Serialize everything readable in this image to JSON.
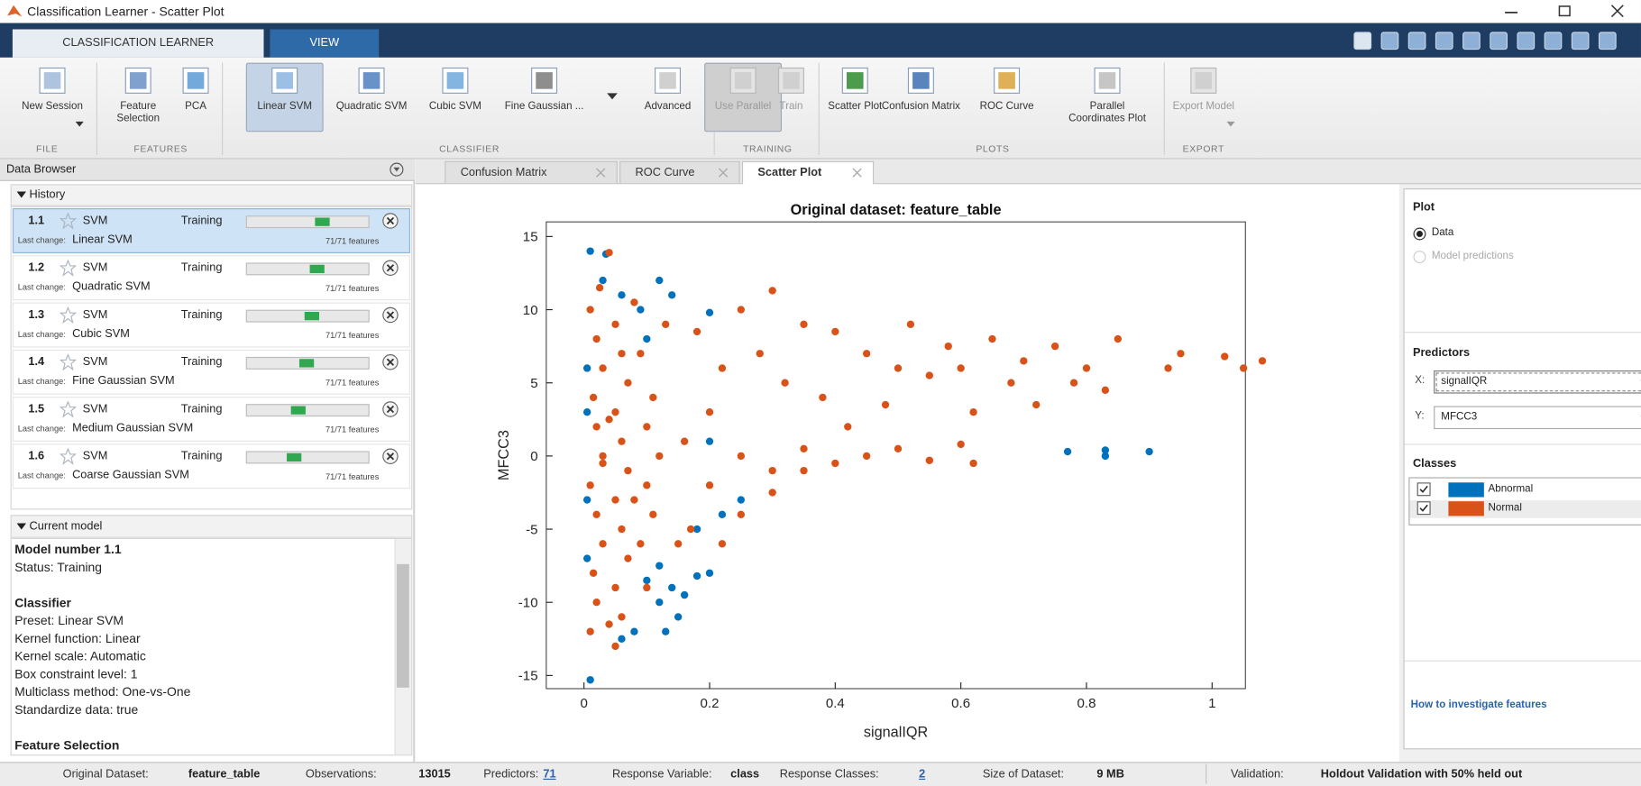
{
  "window": {
    "title": "Classification Learner - Scatter Plot"
  },
  "tabs": [
    "CLASSIFICATION LEARNER",
    "VIEW"
  ],
  "toolstrip": [
    {
      "label": "FILE",
      "buttons": [
        {
          "label": "New Session",
          "dropdown": true
        }
      ]
    },
    {
      "label": "FEATURES",
      "buttons": [
        {
          "label": "Feature Selection"
        },
        {
          "label": "PCA"
        }
      ]
    },
    {
      "label": "CLASSIFIER",
      "buttons": [
        {
          "label": "Linear SVM",
          "selected": true
        },
        {
          "label": "Quadratic SVM"
        },
        {
          "label": "Cubic SVM"
        },
        {
          "label": "Fine Gaussian ..."
        },
        {
          "label": "Advanced"
        }
      ]
    },
    {
      "label": "TRAINING",
      "buttons": [
        {
          "label": "Use Parallel",
          "disabled": true,
          "selected": true
        },
        {
          "label": "Train",
          "disabled": true
        }
      ]
    },
    {
      "label": "PLOTS",
      "buttons": [
        {
          "label": "Scatter Plot"
        },
        {
          "label": "Confusion Matrix"
        },
        {
          "label": "ROC Curve"
        },
        {
          "label": "Parallel Coordinates Plot"
        }
      ]
    },
    {
      "label": "EXPORT",
      "buttons": [
        {
          "label": "Export Model",
          "dropdown": true,
          "disabled": true
        }
      ]
    }
  ],
  "data_browser": {
    "title": "Data Browser",
    "history_label": "History",
    "items": [
      {
        "number": "1.1",
        "type": "SVM",
        "status": "Training",
        "last_change_label": "Last change:",
        "model": "Linear SVM",
        "features": "71/71 features",
        "selected": true
      },
      {
        "number": "1.2",
        "type": "SVM",
        "status": "Training",
        "last_change_label": "Last change:",
        "model": "Quadratic SVM",
        "features": "71/71 features"
      },
      {
        "number": "1.3",
        "type": "SVM",
        "status": "Training",
        "last_change_label": "Last change:",
        "model": "Cubic SVM",
        "features": "71/71 features"
      },
      {
        "number": "1.4",
        "type": "SVM",
        "status": "Training",
        "last_change_label": "Last change:",
        "model": "Fine Gaussian SVM",
        "features": "71/71 features"
      },
      {
        "number": "1.5",
        "type": "SVM",
        "status": "Training",
        "last_change_label": "Last change:",
        "model": "Medium Gaussian SVM",
        "features": "71/71 features"
      },
      {
        "number": "1.6",
        "type": "SVM",
        "status": "Training",
        "last_change_label": "Last change:",
        "model": "Coarse Gaussian SVM",
        "features": "71/71 features"
      }
    ],
    "current_model_label": "Current model",
    "current_model": [
      {
        "heading": "Model number 1.1",
        "lines": [
          "Status: Training"
        ]
      },
      {
        "heading": "Classifier",
        "lines": [
          "Preset: Linear SVM",
          "Kernel function: Linear",
          "Kernel scale: Automatic",
          "Box constraint level: 1",
          "Multiclass method: One-vs-One",
          "Standardize data: true"
        ]
      },
      {
        "heading": "Feature Selection",
        "lines": []
      }
    ]
  },
  "doc_tabs": [
    {
      "label": "Confusion Matrix"
    },
    {
      "label": "ROC Curve"
    },
    {
      "label": "Scatter Plot",
      "active": true
    }
  ],
  "chart_data": {
    "type": "scatter",
    "title": "Original dataset: feature_table",
    "xlabel": "signalIQR",
    "ylabel": "MFCC3",
    "xlim": [
      -0.06,
      1.053
    ],
    "ylim": [
      -15.9,
      16
    ],
    "xticks": [
      0,
      0.2,
      0.4,
      0.6,
      0.8,
      1
    ],
    "yticks": [
      -15,
      -10,
      -5,
      0,
      5,
      10,
      15
    ],
    "grid": false,
    "series": [
      {
        "name": "Abnormal",
        "color": "#0072bd",
        "x": [
          0.01,
          0.01,
          0.035,
          0.03,
          0.06,
          0.12,
          0.14,
          0.2,
          0.1,
          0.12,
          0.14,
          0.16,
          0.18,
          0.2,
          0.15,
          0.13,
          0.08,
          0.06,
          0.005,
          0.005,
          0.005,
          0.005,
          0.77,
          0.83,
          0.83,
          0.9,
          0.12,
          0.18,
          0.22,
          0.2,
          0.25,
          0.09,
          0.1
        ],
        "values": [
          14,
          -15.3,
          13.8,
          12,
          11,
          12,
          11,
          9.8,
          -8.5,
          -10,
          -9,
          -9.5,
          -8.2,
          -8,
          -11,
          -12,
          -12,
          -12.5,
          -3,
          3,
          6,
          -7,
          0.3,
          0.4,
          0,
          0.3,
          -7.5,
          -5,
          -4,
          1,
          -3,
          10,
          8
        ]
      },
      {
        "name": "Normal",
        "color": "#d95319",
        "x": [
          0.01,
          0.02,
          0.015,
          0.03,
          0.02,
          0.01,
          0.03,
          0.02,
          0.015,
          0.03,
          0.02,
          0.01,
          0.025,
          0.05,
          0.06,
          0.05,
          0.07,
          0.06,
          0.05,
          0.07,
          0.06,
          0.05,
          0.07,
          0.06,
          0.05,
          0.08,
          0.1,
          0.09,
          0.11,
          0.1,
          0.12,
          0.1,
          0.11,
          0.09,
          0.13,
          0.04,
          0.04,
          0.03,
          0.04,
          0.08,
          0.15,
          0.17,
          0.16,
          0.2,
          0.22,
          0.18,
          0.25,
          0.3,
          0.28,
          0.32,
          0.35,
          0.4,
          0.38,
          0.42,
          0.45,
          0.5,
          0.48,
          0.52,
          0.55,
          0.58,
          0.6,
          0.62,
          0.65,
          0.68,
          0.7,
          0.72,
          0.75,
          0.78,
          0.8,
          0.85,
          0.83,
          0.95,
          1.02,
          1.05,
          1.08,
          0.93,
          0.25,
          0.3,
          0.35,
          0.4,
          0.45,
          0.5,
          0.55,
          0.6,
          0.62,
          0.2,
          0.25,
          0.3,
          0.35,
          0.22
        ],
        "values": [
          -12,
          -10,
          -8,
          -6,
          -4,
          -2,
          0,
          2,
          4,
          6,
          8,
          10,
          11.5,
          -13,
          -11,
          -9,
          -7,
          -5,
          -3,
          -1,
          1,
          3,
          5,
          7,
          9,
          10.5,
          -9,
          -6,
          -4,
          -2,
          0,
          2,
          4,
          7,
          9,
          -11.5,
          13.9,
          -0.5,
          2.5,
          -3,
          -6,
          -5,
          1,
          3,
          6,
          8.5,
          10,
          11.3,
          7,
          5,
          9,
          8.5,
          4,
          2,
          7,
          6,
          3.5,
          9,
          5.5,
          7.5,
          6,
          3,
          8,
          5,
          6.5,
          3.5,
          7.5,
          5,
          6,
          8,
          4.5,
          7,
          6.8,
          6,
          6.5,
          6,
          0,
          -1,
          0.5,
          -0.5,
          0,
          0.5,
          -0.3,
          0.8,
          -0.5,
          -2,
          -4,
          -2.5,
          -1,
          -6
        ]
      }
    ]
  },
  "side_panel": {
    "plot_heading": "Plot",
    "plot_options": [
      {
        "label": "Data",
        "checked": true
      },
      {
        "label": "Model predictions",
        "disabled": true
      }
    ],
    "predictors_heading": "Predictors",
    "predictors": [
      {
        "axis": "X:",
        "value": "signalIQR"
      },
      {
        "axis": "Y:",
        "value": "MFCC3"
      }
    ],
    "classes_heading": "Classes",
    "link": "How to investigate features"
  },
  "status_bar": {
    "items": [
      {
        "label": "Original Dataset:",
        "value": "feature_table"
      },
      {
        "label": "Observations:",
        "value": "13015"
      },
      {
        "label": "Predictors:",
        "value": "71",
        "link": true
      },
      {
        "label": "Response Variable:",
        "value": "class"
      },
      {
        "label": "Response Classes:",
        "value": "2",
        "link": true
      },
      {
        "label": "Size of Dataset:",
        "value": "9 MB"
      }
    ],
    "validation": {
      "label": "Validation:",
      "value": "Holdout Validation with 50% held out"
    }
  }
}
